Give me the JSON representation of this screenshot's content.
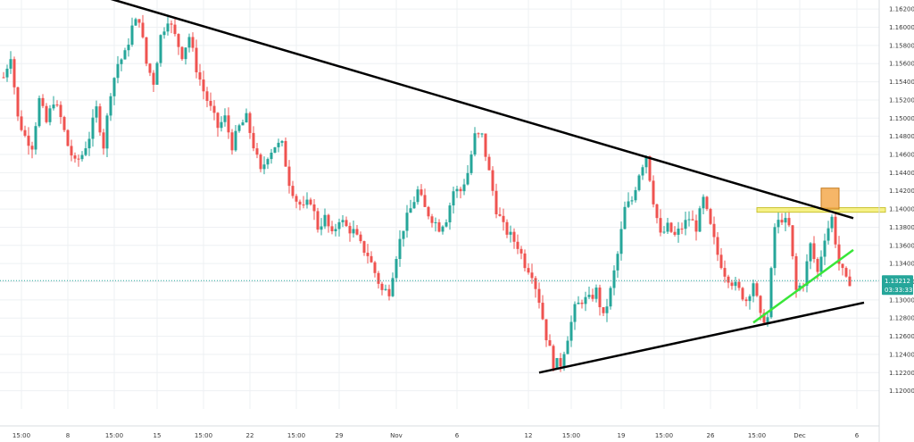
{
  "colors": {
    "background": "#ffffff",
    "grid": "#eef0f3",
    "bull": "#26a69a",
    "bear": "#ef5350",
    "trendline": "#000000",
    "green_support": "#39e639",
    "orange_box": "#f5a94d",
    "yellow_zone": "#f5f07a",
    "price_line": "#26a69a",
    "axis_text": "#3a3a3a"
  },
  "chart_data": {
    "type": "candlestick",
    "title": "",
    "xlabel": "",
    "ylabel": "",
    "ylim": [
      1.118,
      1.163
    ],
    "grid": true,
    "y_axis_position": "right",
    "y_ticks": [
      "1.12000",
      "1.12200",
      "1.12400",
      "1.12600",
      "1.12800",
      "1.13000",
      "1.13200",
      "1.13400",
      "1.13600",
      "1.13800",
      "1.14000",
      "1.14200",
      "1.14400",
      "1.14600",
      "1.14800",
      "1.15000",
      "1.15200",
      "1.15400",
      "1.15600",
      "1.15800",
      "1.16000",
      "1.16200"
    ],
    "x_ticks": [
      "15:00",
      "8",
      "15:00",
      "15",
      "15:00",
      "22",
      "15:00",
      "29",
      "Nov",
      "6",
      "12",
      "15:00",
      "19",
      "15:00",
      "26",
      "15:00",
      "Dec",
      "6"
    ],
    "x_range": [
      0,
      237
    ],
    "x_tick_positions": [
      5,
      18,
      31,
      43,
      56,
      69,
      82,
      94,
      110,
      127,
      147,
      159,
      173,
      185,
      198,
      211,
      223,
      239
    ],
    "last_price": "1.13212",
    "countdown": "03:33:33",
    "close_anchors": [
      [
        0,
        1.1545
      ],
      [
        2,
        1.157
      ],
      [
        4,
        1.15
      ],
      [
        6,
        1.148
      ],
      [
        8,
        1.147
      ],
      [
        10,
        1.152
      ],
      [
        12,
        1.1495
      ],
      [
        14,
        1.152
      ],
      [
        16,
        1.15
      ],
      [
        18,
        1.147
      ],
      [
        20,
        1.145
      ],
      [
        22,
        1.146
      ],
      [
        24,
        1.148
      ],
      [
        26,
        1.151
      ],
      [
        28,
        1.147
      ],
      [
        30,
        1.153
      ],
      [
        32,
        1.156
      ],
      [
        34,
        1.157
      ],
      [
        36,
        1.16
      ],
      [
        38,
        1.161
      ],
      [
        40,
        1.156
      ],
      [
        42,
        1.154
      ],
      [
        44,
        1.159
      ],
      [
        46,
        1.161
      ],
      [
        48,
        1.159
      ],
      [
        50,
        1.157
      ],
      [
        52,
        1.159
      ],
      [
        54,
        1.1555
      ],
      [
        56,
        1.153
      ],
      [
        58,
        1.151
      ],
      [
        60,
        1.149
      ],
      [
        62,
        1.15
      ],
      [
        64,
        1.147
      ],
      [
        66,
        1.149
      ],
      [
        68,
        1.15
      ],
      [
        70,
        1.147
      ],
      [
        72,
        1.144
      ],
      [
        74,
        1.146
      ],
      [
        76,
        1.147
      ],
      [
        78,
        1.147
      ],
      [
        80,
        1.143
      ],
      [
        82,
        1.141
      ],
      [
        84,
        1.14
      ],
      [
        86,
        1.141
      ],
      [
        88,
        1.138
      ],
      [
        90,
        1.139
      ],
      [
        92,
        1.137
      ],
      [
        94,
        1.139
      ],
      [
        96,
        1.138
      ],
      [
        98,
        1.1375
      ],
      [
        100,
        1.136
      ],
      [
        102,
        1.135
      ],
      [
        104,
        1.133
      ],
      [
        106,
        1.131
      ],
      [
        108,
        1.131
      ],
      [
        110,
        1.135
      ],
      [
        112,
        1.138
      ],
      [
        114,
        1.14
      ],
      [
        116,
        1.142
      ],
      [
        118,
        1.14
      ],
      [
        120,
        1.139
      ],
      [
        122,
        1.138
      ],
      [
        124,
        1.139
      ],
      [
        126,
        1.142
      ],
      [
        128,
        1.142
      ],
      [
        130,
        1.144
      ],
      [
        132,
        1.148
      ],
      [
        134,
        1.148
      ],
      [
        136,
        1.144
      ],
      [
        138,
        1.14
      ],
      [
        140,
        1.138
      ],
      [
        142,
        1.137
      ],
      [
        144,
        1.136
      ],
      [
        146,
        1.134
      ],
      [
        148,
        1.133
      ],
      [
        150,
        1.13
      ],
      [
        152,
        1.126
      ],
      [
        154,
        1.123
      ],
      [
        156,
        1.123
      ],
      [
        158,
        1.126
      ],
      [
        160,
        1.129
      ],
      [
        162,
        1.13
      ],
      [
        164,
        1.13
      ],
      [
        166,
        1.131
      ],
      [
        168,
        1.128
      ],
      [
        170,
        1.131
      ],
      [
        172,
        1.135
      ],
      [
        174,
        1.14
      ],
      [
        176,
        1.141
      ],
      [
        178,
        1.144
      ],
      [
        180,
        1.146
      ],
      [
        182,
        1.141
      ],
      [
        184,
        1.137
      ],
      [
        186,
        1.138
      ],
      [
        188,
        1.137
      ],
      [
        190,
        1.138
      ],
      [
        192,
        1.139
      ],
      [
        194,
        1.138
      ],
      [
        196,
        1.141
      ],
      [
        198,
        1.138
      ],
      [
        200,
        1.135
      ],
      [
        202,
        1.133
      ],
      [
        204,
        1.132
      ],
      [
        206,
        1.131
      ],
      [
        208,
        1.13
      ],
      [
        210,
        1.132
      ],
      [
        212,
        1.128
      ],
      [
        214,
        1.128
      ],
      [
        216,
        1.138
      ],
      [
        218,
        1.139
      ],
      [
        220,
        1.138
      ],
      [
        222,
        1.131
      ],
      [
        224,
        1.132
      ],
      [
        226,
        1.136
      ],
      [
        228,
        1.133
      ],
      [
        230,
        1.137
      ],
      [
        232,
        1.139
      ],
      [
        234,
        1.134
      ],
      [
        236,
        1.132
      ],
      [
        237,
        1.1321
      ]
    ],
    "annotations": {
      "upper_trendline": {
        "from": [
          25,
          1.1637
        ],
        "to": [
          238,
          1.139
        ]
      },
      "lower_trendline": {
        "from": [
          150,
          1.122
        ],
        "to": [
          241,
          1.1297
        ]
      },
      "green_support": {
        "from": [
          210,
          1.1275
        ],
        "to": [
          238,
          1.1355
        ]
      },
      "yellow_zone": {
        "x": [
          211,
          247
        ],
        "y": [
          1.13965,
          1.14015
        ]
      },
      "orange_box": {
        "x": [
          229,
          234
        ],
        "y": [
          1.14,
          1.1423
        ]
      }
    }
  }
}
